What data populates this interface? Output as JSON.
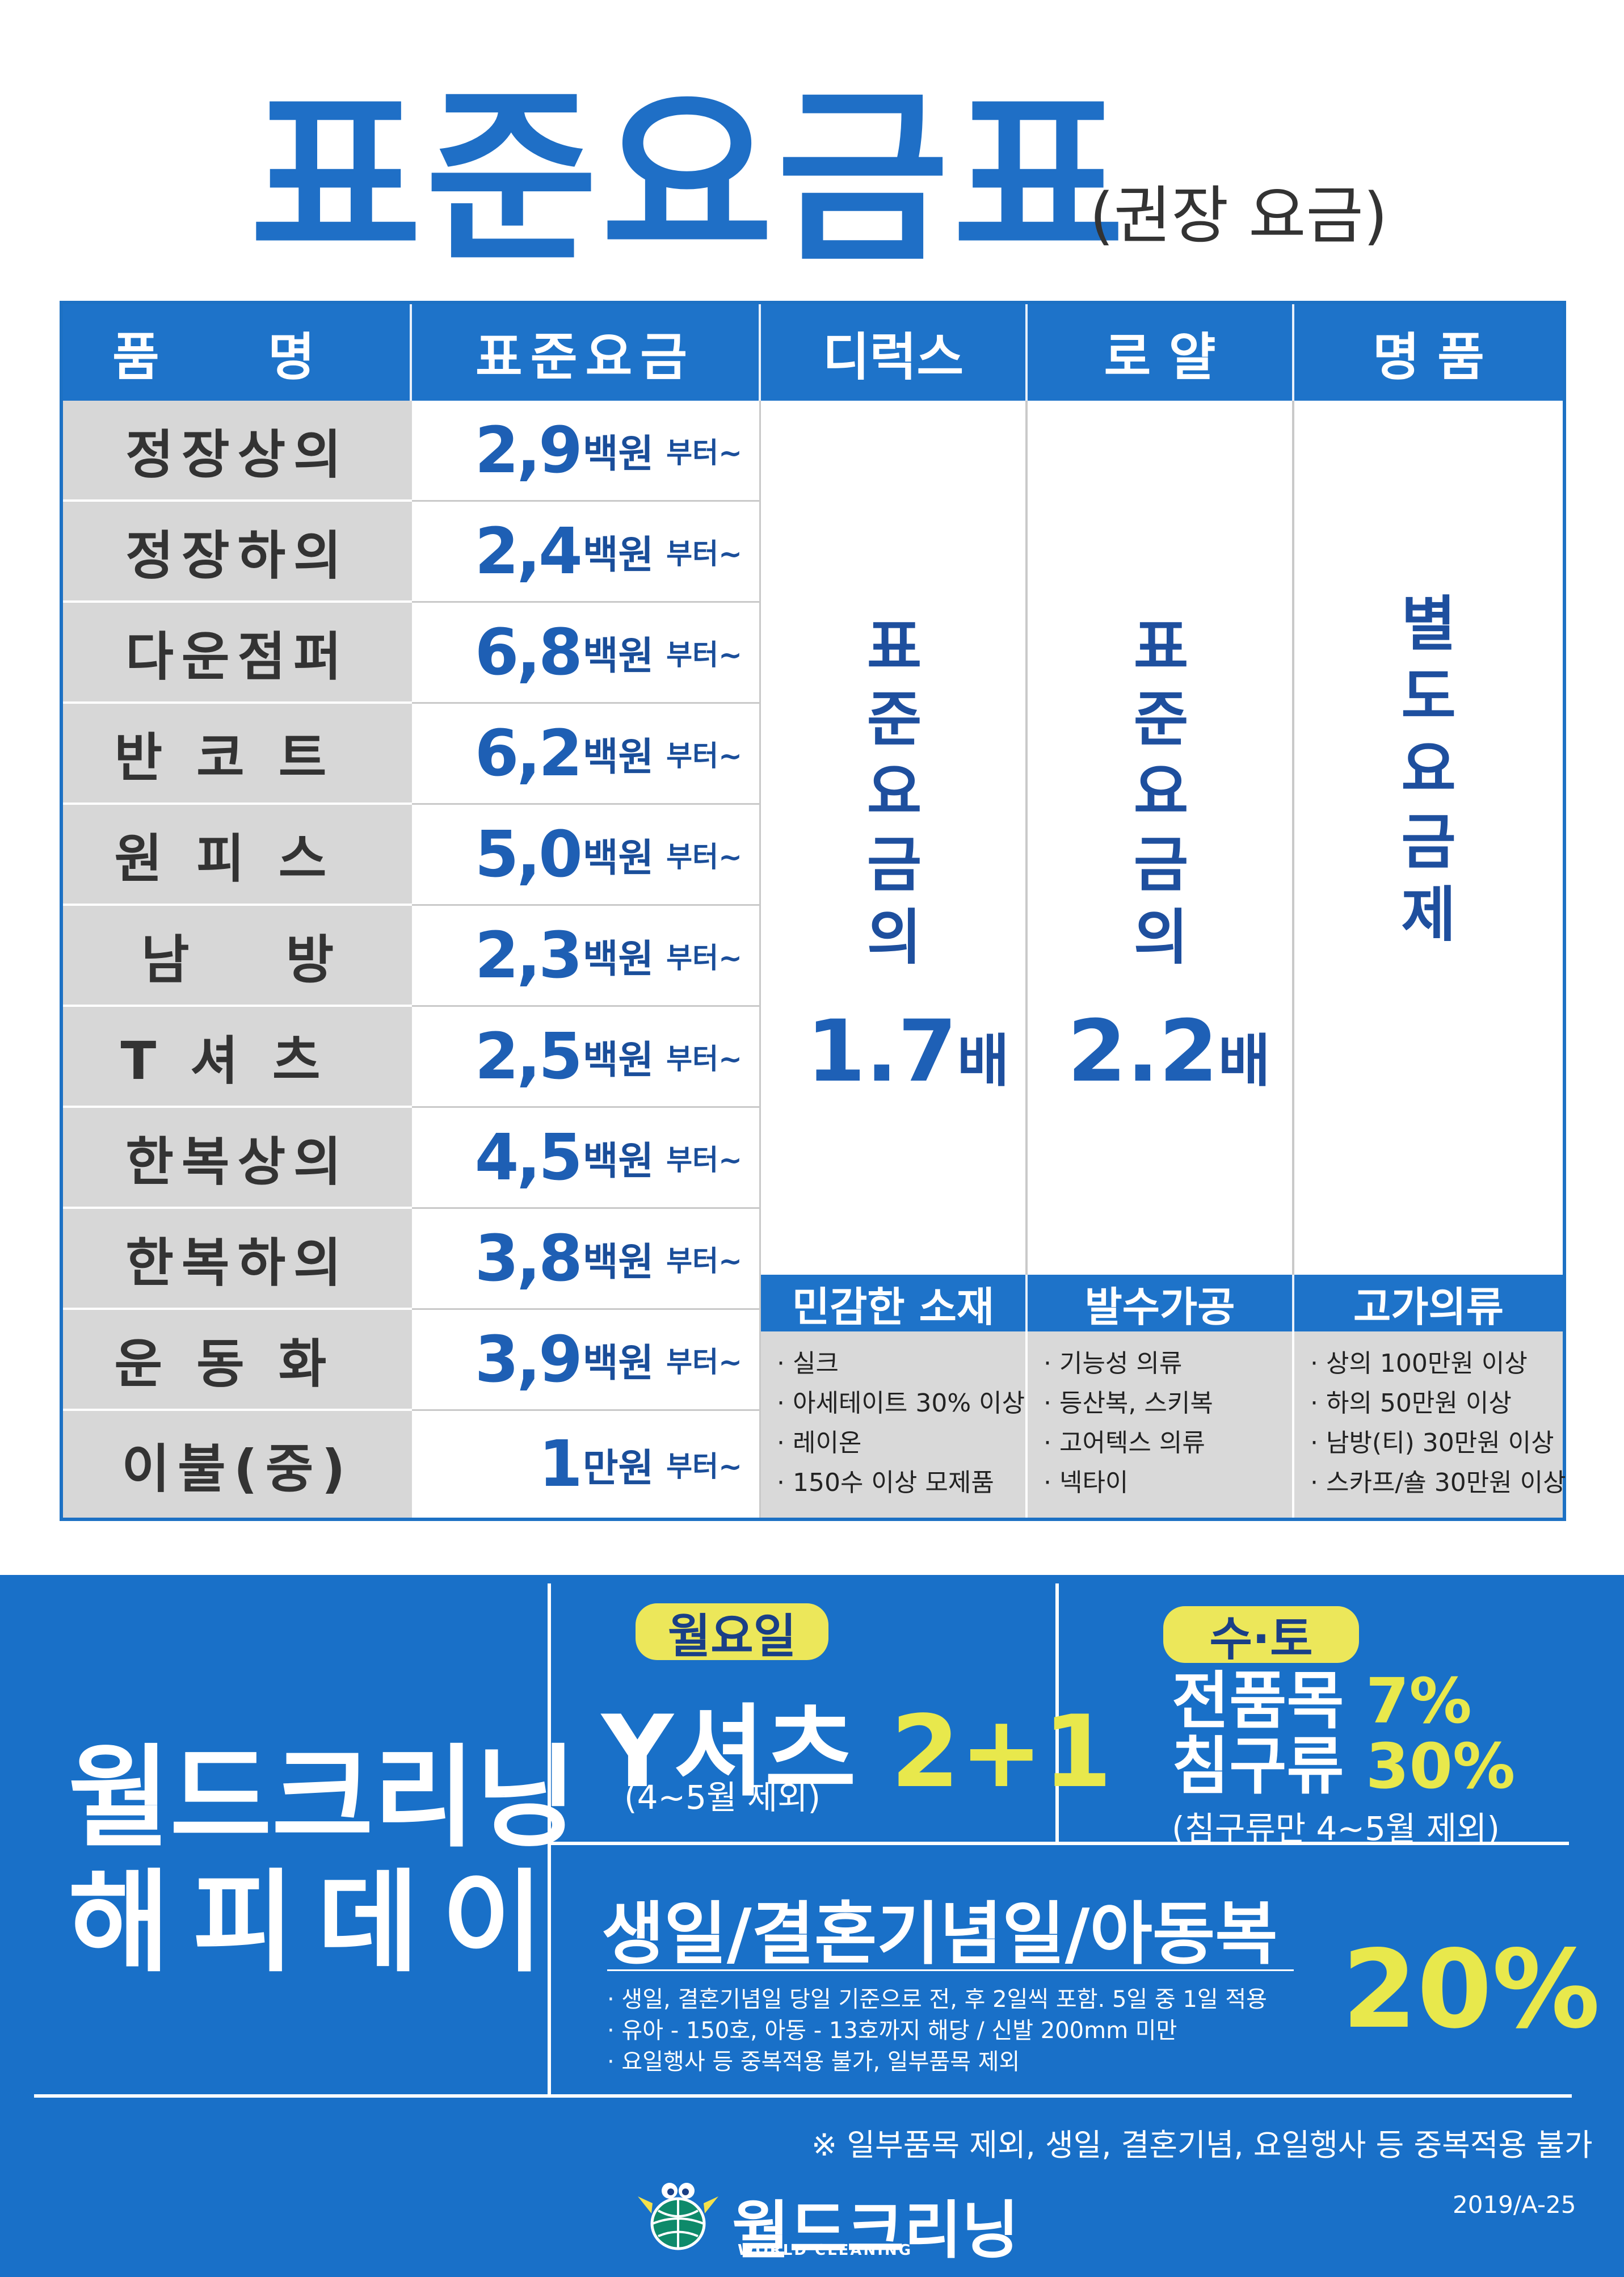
{
  "title": "표준요금표",
  "subtitle": "(권장 요금)",
  "table": {
    "headers": [
      "품 명",
      "표준요금",
      "디럭스",
      "로 얄",
      "명 품"
    ],
    "rows": [
      {
        "name": "정장상의",
        "price": "2,9",
        "unit": "백원",
        "from": "부터~"
      },
      {
        "name": "정장하의",
        "price": "2,4",
        "unit": "백원",
        "from": "부터~"
      },
      {
        "name": "다운점퍼",
        "price": "6,8",
        "unit": "백원",
        "from": "부터~"
      },
      {
        "name": "반코트",
        "price": "6,2",
        "unit": "백원",
        "from": "부터~"
      },
      {
        "name": "원피스",
        "price": "5,0",
        "unit": "백원",
        "from": "부터~"
      },
      {
        "name": "남방",
        "price": "2,3",
        "unit": "백원",
        "from": "부터~"
      },
      {
        "name": "T셔츠",
        "price": "2,5",
        "unit": "백원",
        "from": "부터~"
      },
      {
        "name": "한복상의",
        "price": "4,5",
        "unit": "백원",
        "from": "부터~"
      },
      {
        "name": "한복하의",
        "price": "3,8",
        "unit": "백원",
        "from": "부터~"
      },
      {
        "name": "운동화",
        "price": "3,9",
        "unit": "백원",
        "from": "부터~"
      },
      {
        "name": "이불(중)",
        "price": "1",
        "unit": "만원",
        "from": "부터~"
      }
    ],
    "deluxe": {
      "vertical": [
        "표",
        "준",
        "요",
        "금",
        "의"
      ],
      "multiplier": "1.7",
      "suffix": "배",
      "sub_header": "민감한 소재",
      "items": [
        "· 실크",
        "· 아세테이트 30% 이상",
        "· 레이온",
        "· 150수 이상 모제품"
      ]
    },
    "royal": {
      "vertical": [
        "표",
        "준",
        "요",
        "금",
        "의"
      ],
      "multiplier": "2.2",
      "suffix": "배",
      "sub_header": "발수가공",
      "items": [
        "· 기능성 의류",
        "· 등산복, 스키복",
        "· 고어텍스 의류",
        "· 넥타이"
      ]
    },
    "luxury": {
      "vertical": [
        "별",
        "도",
        "요",
        "금",
        "제"
      ],
      "sub_header": "고가의류",
      "items": [
        "· 상의 100만원 이상",
        "· 하의 50만원 이상",
        "· 남방(티) 30만원 이상",
        "· 스카프/숄 30만원 이상"
      ]
    }
  },
  "promo": {
    "title_line1": "월드크리닝",
    "title_line2": "해피데이",
    "monday": {
      "badge": "월요일",
      "item": "Y셔츠",
      "offer": "2+1",
      "note": "(4~5월 제외)"
    },
    "wedsat": {
      "badge": "수·토",
      "line1_label": "전품목",
      "line1_value": "7%",
      "line2_label": "침구류",
      "line2_value": "30%",
      "note": "(침구류만 4~5월 제외)"
    },
    "birthday": {
      "title": "생일/결혼기념일/아동복",
      "discount": "20%",
      "notes": [
        "· 생일, 결혼기념일 당일 기준으로 전, 후 2일씩 포함. 5일 중 1일 적용",
        "· 유아 - 150호, 아동 - 13호까지 해당 / 신발 200mm 미만",
        "· 요일행사 등 중복적용 불가, 일부품목 제외"
      ]
    },
    "disclaimer": "※ 일부품목 제외, 생일, 결혼기념, 요일행사 등 중복적용 불가",
    "logo": "월드크리닝",
    "logo_sub": "WORLD CLEANING",
    "code": "2019/A-25"
  },
  "colors": {
    "brand_blue": "#1e73c9",
    "promo_blue": "#1970c8",
    "accent_yellow": "#e8e84c",
    "price_blue": "#1e5fb4"
  }
}
